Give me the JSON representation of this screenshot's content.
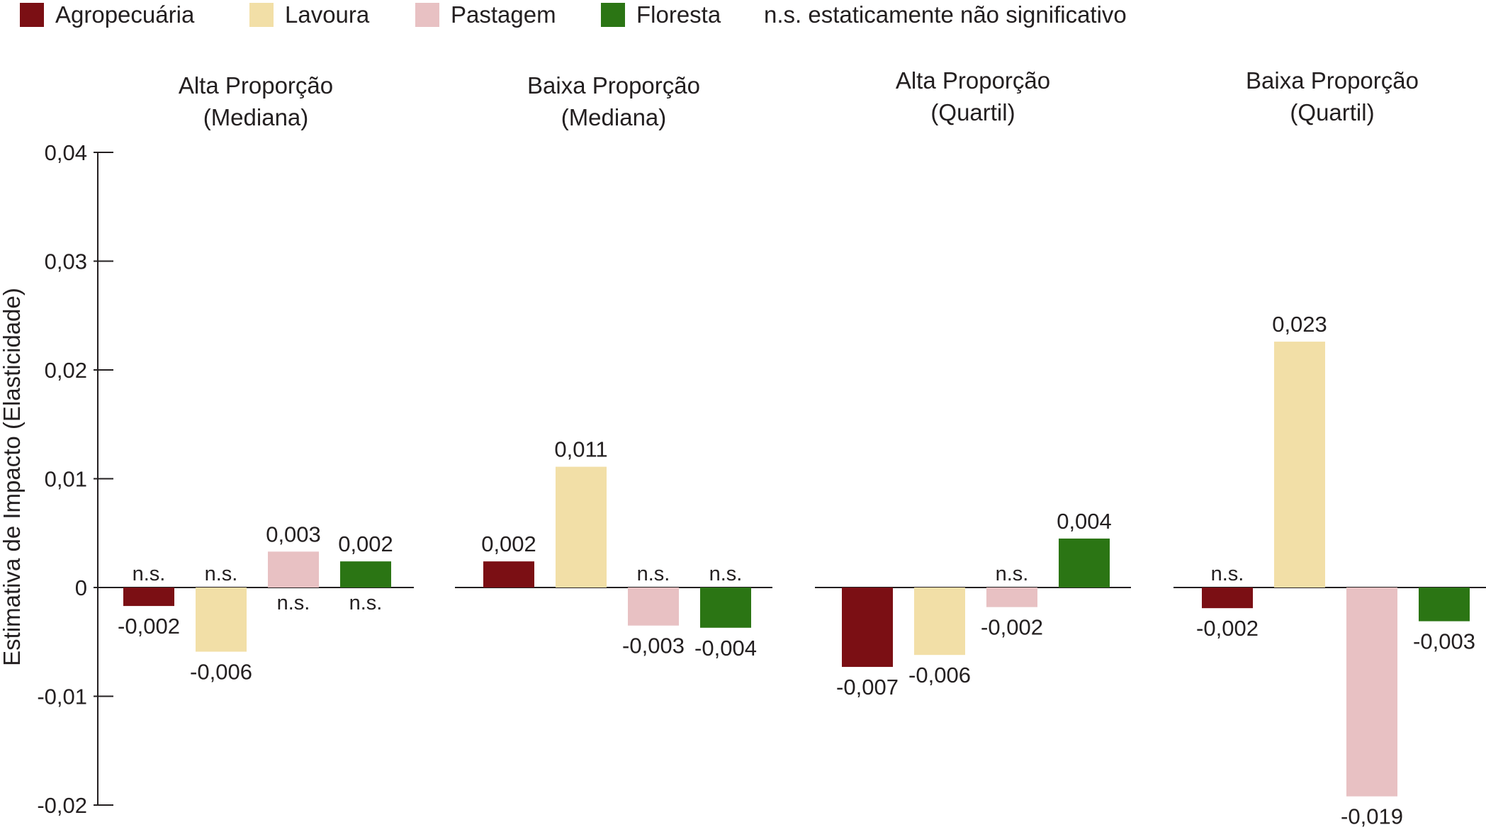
{
  "chart_data": {
    "type": "bar",
    "ylabel": "Estimativa de Impacto (Elasticidade)",
    "ylim": [
      -0.02,
      0.04
    ],
    "yticks": [
      {
        "value": 0.04,
        "label": "0,04"
      },
      {
        "value": 0.03,
        "label": "0,03"
      },
      {
        "value": 0.02,
        "label": "0,02"
      },
      {
        "value": 0.01,
        "label": "0,01"
      },
      {
        "value": 0,
        "label": "0"
      },
      {
        "value": -0.01,
        "label": "-0,01"
      },
      {
        "value": -0.02,
        "label": "-0,02"
      }
    ],
    "legend": {
      "placement": "top-left",
      "items": [
        {
          "name": "Agropecuária",
          "color": "#7b0f14"
        },
        {
          "name": "Lavoura",
          "color": "#f2dfa7"
        },
        {
          "name": "Pastagem",
          "color": "#e8c1c3"
        },
        {
          "name": "Floresta",
          "color": "#2b7514"
        }
      ],
      "note": "n.s. estaticamente não significativo"
    },
    "ns_label": "n.s.",
    "panels": [
      {
        "title": [
          "Alta Proporção",
          "(Mediana)"
        ],
        "bars": [
          {
            "series": "Agropecuária",
            "value": -0.0017,
            "label": "-0,002",
            "ns": true
          },
          {
            "series": "Lavoura",
            "value": -0.0059,
            "label": "-0,006",
            "ns": true
          },
          {
            "series": "Pastagem",
            "value": 0.0033,
            "label": "0,003",
            "ns": true
          },
          {
            "series": "Floresta",
            "value": 0.0024,
            "label": "0,002",
            "ns": true
          }
        ]
      },
      {
        "title": [
          "Baixa Proporção",
          "(Mediana)"
        ],
        "bars": [
          {
            "series": "Agropecuária",
            "value": 0.0024,
            "label": "0,002",
            "ns": false
          },
          {
            "series": "Lavoura",
            "value": 0.0111,
            "label": "0,011",
            "ns": false
          },
          {
            "series": "Pastagem",
            "value": -0.0035,
            "label": "-0,003",
            "ns": true
          },
          {
            "series": "Floresta",
            "value": -0.0037,
            "label": "-0,004",
            "ns": true
          }
        ]
      },
      {
        "title": [
          "Alta Proporção",
          "(Quartil)"
        ],
        "bars": [
          {
            "series": "Agropecuária",
            "value": -0.0073,
            "label": "-0,007",
            "ns": false
          },
          {
            "series": "Lavoura",
            "value": -0.0062,
            "label": "-0,006",
            "ns": false
          },
          {
            "series": "Pastagem",
            "value": -0.0018,
            "label": "-0,002",
            "ns": true
          },
          {
            "series": "Floresta",
            "value": 0.0045,
            "label": "0,004",
            "ns": false
          }
        ]
      },
      {
        "title": [
          "Baixa Proporção",
          "(Quartil)"
        ],
        "bars": [
          {
            "series": "Agropecuária",
            "value": -0.0019,
            "label": "-0,002",
            "ns": true
          },
          {
            "series": "Lavoura",
            "value": 0.0226,
            "label": "0,023",
            "ns": false
          },
          {
            "series": "Pastagem",
            "value": -0.0192,
            "label": "-0,019",
            "ns": false
          },
          {
            "series": "Floresta",
            "value": -0.0031,
            "label": "-0,003",
            "ns": false
          }
        ]
      }
    ]
  }
}
